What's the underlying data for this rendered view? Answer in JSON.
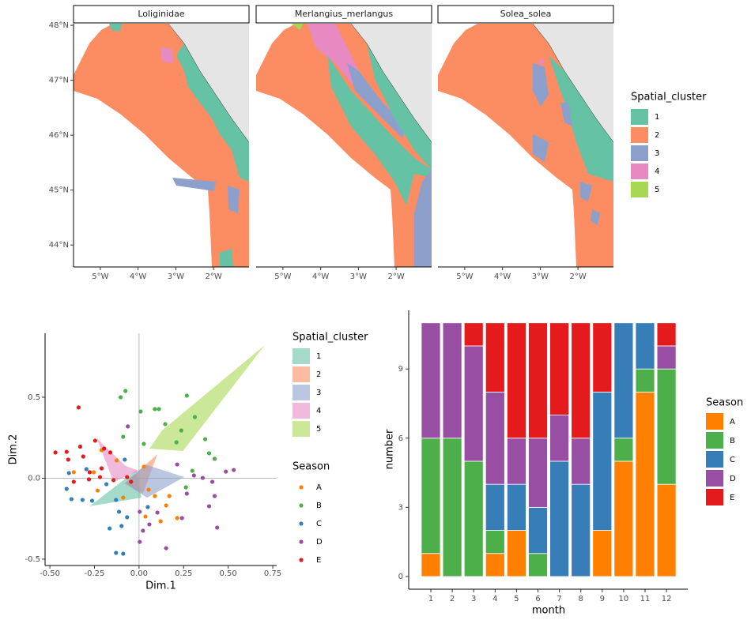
{
  "chart_data": [
    {
      "type": "map",
      "facets": [
        "Loliginidae",
        "Merlangius_merlangus",
        "Solea_solea"
      ],
      "xlim": [
        -5.71,
        -1.06
      ],
      "ylim": [
        43.6,
        48.03
      ],
      "xticks": [
        {
          "value": -5,
          "label": "5°W"
        },
        {
          "value": -4,
          "label": "4°W"
        },
        {
          "value": -3,
          "label": "3°W"
        },
        {
          "value": -2,
          "label": "2°W"
        }
      ],
      "yticks": [
        {
          "value": 44,
          "label": "44°N"
        },
        {
          "value": 45,
          "label": "45°N"
        },
        {
          "value": 46,
          "label": "46°N"
        },
        {
          "value": 47,
          "label": "47°N"
        },
        {
          "value": 48,
          "label": "48°N"
        }
      ],
      "legend_title": "Spatial_cluster",
      "clusters": [
        {
          "name": "1",
          "color": "#66c2a5"
        },
        {
          "name": "2",
          "color": "#fc8d62"
        },
        {
          "name": "3",
          "color": "#8da0cb"
        },
        {
          "name": "4",
          "color": "#e78ac3"
        },
        {
          "name": "5",
          "color": "#a6d854"
        }
      ]
    },
    {
      "type": "scatter",
      "xlabel": "Dim.1",
      "ylabel": "Dim.2",
      "xlim": [
        -0.527,
        0.772
      ],
      "ylim": [
        -0.539,
        0.895
      ],
      "xticks": [
        {
          "value": -0.5,
          "label": "-0.50"
        },
        {
          "value": -0.25,
          "label": "-0.25"
        },
        {
          "value": 0,
          "label": "0.00"
        },
        {
          "value": 0.25,
          "label": "0.25"
        },
        {
          "value": 0.5,
          "label": "0.50"
        },
        {
          "value": 0.75,
          "label": "0.75"
        }
      ],
      "yticks": [
        {
          "value": -0.5,
          "label": "-0.5"
        },
        {
          "value": 0,
          "label": "0.0"
        },
        0.5
      ],
      "hull_legend_title": "Spatial_cluster",
      "hulls": [
        {
          "name": "1",
          "color": "#66c2a5",
          "x": [
            -0.277,
            -0.013,
            0.013
          ],
          "y": [
            -0.173,
            0.051,
            -0.12
          ]
        },
        {
          "name": "2",
          "color": "#fc8d62",
          "x": [
            0.103,
            0.022,
            -0.08
          ],
          "y": [
            0.149,
            -0.095,
            -0.032
          ]
        },
        {
          "name": "3",
          "color": "#8da0cb",
          "x": [
            0.036,
            0.254,
            0.045,
            -0.08
          ],
          "y": [
            0.085,
            0.007,
            -0.12,
            -0.032
          ]
        },
        {
          "name": "4",
          "color": "#e78ac3",
          "x": [
            -0.237,
            -0.076,
            0,
            -0.143
          ],
          "y": [
            0.246,
            0.076,
            0.046,
            -0.022
          ]
        },
        {
          "name": "5",
          "color": "#a6d854",
          "x": [
            0.705,
            0.246,
            0.058,
            0.129
          ],
          "y": [
            0.822,
            0.168,
            0.183,
            0.295
          ]
        }
      ],
      "legend_title": "Season",
      "series": [
        {
          "name": "A",
          "color": "#ff7f00",
          "x": [
            -0.366,
            -0.254,
            -0.232,
            -0.089,
            -0.21,
            0.054,
            0.089,
            0.17,
            0.152,
            0.121,
            0.214,
            0.036,
            0.027,
            -0.125
          ],
          "y": [
            0.037,
            0.037,
            -0.076,
            -0.12,
            0.173,
            -0.071,
            -0.11,
            -0.11,
            -0.168,
            -0.266,
            -0.246,
            -0.237,
            0.071,
            0.11
          ]
        },
        {
          "name": "B",
          "color": "#4daf4a",
          "x": [
            -0.076,
            -0.103,
            0.009,
            0.089,
            0.112,
            0.268,
            0.147,
            0.313,
            0.237,
            -0.089,
            0.371,
            0.393,
            0.424,
            0.299,
            0.263,
            0.027,
            0.21
          ],
          "y": [
            0.539,
            0.5,
            0.412,
            0.427,
            0.427,
            0.51,
            0.334,
            0.378,
            0.295,
            0.256,
            0.241,
            0.154,
            0.12,
            0.046,
            -0.056,
            0.212,
            0.222
          ]
        },
        {
          "name": "C",
          "color": "#377eb8",
          "x": [
            -0.393,
            -0.295,
            -0.406,
            -0.317,
            -0.263,
            -0.379,
            -0.183,
            -0.08,
            -0.129,
            -0.112,
            -0.067,
            -0.098,
            -0.165,
            -0.129,
            -0.089,
            0.049
          ],
          "y": [
            0.032,
            0.056,
            -0.066,
            -0.134,
            -0.139,
            -0.129,
            -0.037,
            0.115,
            -0.134,
            -0.207,
            -0.241,
            -0.295,
            -0.31,
            -0.461,
            -0.466,
            -0.178
          ]
        },
        {
          "name": "D",
          "color": "#984ea3",
          "x": [
            -0.063,
            0.004,
            0.022,
            0.004,
            0.058,
            0.103,
            0.152,
            0.241,
            0.268,
            0.308,
            0.357,
            0.411,
            0.424,
            0.393,
            0.438,
            0.531,
            0.487,
            0.214
          ],
          "y": [
            0.32,
            -0.207,
            -0.324,
            -0.393,
            -0.285,
            -0.212,
            -0.432,
            -0.246,
            -0.095,
            0.017,
            0.002,
            -0.022,
            -0.11,
            -0.173,
            -0.305,
            0.051,
            0.041,
            0.085
          ]
        },
        {
          "name": "E",
          "color": "#e41a1c",
          "x": [
            -0.339,
            -0.469,
            -0.406,
            -0.33,
            -0.313,
            -0.397,
            -0.246,
            -0.196,
            -0.161,
            -0.21,
            -0.281,
            -0.366,
            -0.277,
            -0.219,
            -0.143,
            -0.045,
            -0.067
          ],
          "y": [
            0.437,
            0.159,
            0.163,
            0.195,
            0.134,
            0.115,
            0.232,
            0.183,
            0.159,
            0.061,
            -0.007,
            -0.022,
            0.037,
            0.007,
            -0.012,
            -0.022,
            0.007
          ]
        }
      ]
    },
    {
      "type": "bar",
      "stacked": true,
      "xlabel": "month",
      "ylabel": "number",
      "categories": [
        "1",
        "2",
        "3",
        "4",
        "5",
        "6",
        "7",
        "8",
        "9",
        "10",
        "11",
        "12"
      ],
      "ylim": [
        -0.55,
        11.54
      ],
      "yticks": [
        0,
        3,
        6,
        9
      ],
      "legend_title": "Season",
      "series": [
        {
          "name": "A",
          "color": "#ff7f00",
          "values": [
            1,
            0,
            0,
            1,
            2,
            0,
            0,
            0,
            2,
            5,
            8,
            4
          ]
        },
        {
          "name": "B",
          "color": "#4daf4a",
          "values": [
            5,
            6,
            5,
            1,
            0,
            1,
            0,
            0,
            0,
            1,
            1,
            5
          ]
        },
        {
          "name": "C",
          "color": "#377eb8",
          "values": [
            0,
            0,
            0,
            2,
            2,
            2,
            5,
            4,
            6,
            5,
            2,
            0
          ]
        },
        {
          "name": "D",
          "color": "#984ea3",
          "values": [
            5,
            5,
            5,
            4,
            2,
            3,
            2,
            2,
            0,
            0,
            0,
            1
          ]
        },
        {
          "name": "E",
          "color": "#e41a1c",
          "values": [
            0,
            0,
            1,
            3,
            5,
            5,
            4,
            5,
            3,
            0,
            0,
            1
          ]
        }
      ]
    }
  ]
}
